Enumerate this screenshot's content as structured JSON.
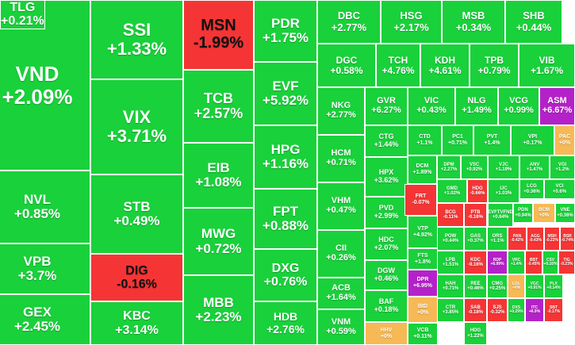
{
  "colors": {
    "up": "#19d13a",
    "down": "#f53535",
    "unchanged": "#f7b955",
    "ceiling": "#b521c9",
    "text_on_ceiling": "#ffffff"
  },
  "tiles": [
    {
      "symbol": "VND",
      "change": "+2.09%",
      "status": "up"
    },
    {
      "symbol": "NVL",
      "change": "+0.85%",
      "status": "up"
    },
    {
      "symbol": "VPB",
      "change": "+3.7%",
      "status": "up"
    },
    {
      "symbol": "GEX",
      "change": "+2.45%",
      "status": "up"
    },
    {
      "symbol": "SSI",
      "change": "+1.33%",
      "status": "up"
    },
    {
      "symbol": "VIX",
      "change": "+3.71%",
      "status": "up"
    },
    {
      "symbol": "STB",
      "change": "+0.49%",
      "status": "up"
    },
    {
      "symbol": "DIG",
      "change": "-0.16%",
      "status": "down"
    },
    {
      "symbol": "KBC",
      "change": "+3.14%",
      "status": "up"
    },
    {
      "symbol": "MSN",
      "change": "-1.99%",
      "status": "down"
    },
    {
      "symbol": "TCB",
      "change": "+2.57%",
      "status": "up"
    },
    {
      "symbol": "EIB",
      "change": "+1.08%",
      "status": "up"
    },
    {
      "symbol": "MWG",
      "change": "+0.72%",
      "status": "up"
    },
    {
      "symbol": "MBB",
      "change": "+2.23%",
      "status": "up"
    },
    {
      "symbol": "PDR",
      "change": "+1.75%",
      "status": "up"
    },
    {
      "symbol": "EVF",
      "change": "+5.92%",
      "status": "up"
    },
    {
      "symbol": "HPG",
      "change": "+1.16%",
      "status": "up"
    },
    {
      "symbol": "FPT",
      "change": "+0.88%",
      "status": "up"
    },
    {
      "symbol": "DXG",
      "change": "+0.76%",
      "status": "up"
    },
    {
      "symbol": "HDB",
      "change": "+2.76%",
      "status": "up"
    },
    {
      "symbol": "DBC",
      "change": "+2.77%",
      "status": "up"
    },
    {
      "symbol": "HSG",
      "change": "+2.17%",
      "status": "up"
    },
    {
      "symbol": "MSB",
      "change": "+0.34%",
      "status": "up"
    },
    {
      "symbol": "SHB",
      "change": "+0.44%",
      "status": "up"
    },
    {
      "symbol": "DGC",
      "change": "+0.58%",
      "status": "up"
    },
    {
      "symbol": "TCH",
      "change": "+4.76%",
      "status": "up"
    },
    {
      "symbol": "KDH",
      "change": "+4.61%",
      "status": "up"
    },
    {
      "symbol": "TPB",
      "change": "+0.79%",
      "status": "up"
    },
    {
      "symbol": "VIB",
      "change": "+1.67%",
      "status": "up"
    },
    {
      "symbol": "NKG",
      "change": "+2.77%",
      "status": "up"
    },
    {
      "symbol": "GVR",
      "change": "+6.27%",
      "status": "up"
    },
    {
      "symbol": "VIC",
      "change": "+0.43%",
      "status": "up"
    },
    {
      "symbol": "NLG",
      "change": "+1.49%",
      "status": "up"
    },
    {
      "symbol": "VCG",
      "change": "+0.99%",
      "status": "up"
    },
    {
      "symbol": "ASM",
      "change": "+6.67%",
      "status": "ceiling"
    },
    {
      "symbol": "HCM",
      "change": "+0.71%",
      "status": "up"
    },
    {
      "symbol": "VHM",
      "change": "+0.47%",
      "status": "up"
    },
    {
      "symbol": "CII",
      "change": "+0.26%",
      "status": "up"
    },
    {
      "symbol": "ACB",
      "change": "+1.64%",
      "status": "up"
    },
    {
      "symbol": "VNM",
      "change": "+0.59%",
      "status": "up"
    },
    {
      "symbol": "CTG",
      "change": "+1.44%",
      "status": "up"
    },
    {
      "symbol": "HPX",
      "change": "+3.62%",
      "status": "up"
    },
    {
      "symbol": "PVD",
      "change": "+2.99%",
      "status": "up"
    },
    {
      "symbol": "HDC",
      "change": "+2.07%",
      "status": "up"
    },
    {
      "symbol": "DGW",
      "change": "+0.46%",
      "status": "up"
    },
    {
      "symbol": "BAF",
      "change": "+0.18%",
      "status": "up"
    },
    {
      "symbol": "HHV",
      "change": "+0%",
      "status": "unchanged"
    },
    {
      "symbol": "CTD",
      "change": "+1.1%",
      "status": "up"
    },
    {
      "symbol": "PC1",
      "change": "+0.71%",
      "status": "up"
    },
    {
      "symbol": "PVT",
      "change": "+1.4%",
      "status": "up"
    },
    {
      "symbol": "VPI",
      "change": "+0.17%",
      "status": "up"
    },
    {
      "symbol": "PAC",
      "change": "+0%",
      "status": "unchanged"
    },
    {
      "symbol": "DCM",
      "change": "+1.89%",
      "status": "up"
    },
    {
      "symbol": "FRT",
      "change": "-0.07%",
      "status": "down"
    },
    {
      "symbol": "VTP",
      "change": "+4.92%",
      "status": "up"
    },
    {
      "symbol": "FTS",
      "change": "+1.8%",
      "status": "up"
    },
    {
      "symbol": "DPR",
      "change": "+6.95%",
      "status": "ceiling"
    },
    {
      "symbol": "BID",
      "change": "+0%",
      "status": "unchanged"
    },
    {
      "symbol": "VCB",
      "change": "+0.11%",
      "status": "up"
    },
    {
      "symbol": "DPM",
      "change": "+2.27%",
      "status": "up"
    },
    {
      "symbol": "VSC",
      "change": "+0.92%",
      "status": "up"
    },
    {
      "symbol": "VJC",
      "change": "+1.19%",
      "status": "up"
    },
    {
      "symbol": "GMD",
      "change": "+1.02%",
      "status": "up"
    },
    {
      "symbol": "HDG",
      "change": "-0.66%",
      "status": "down"
    },
    {
      "symbol": "BCG",
      "change": "-0.11%",
      "status": "down"
    },
    {
      "symbol": "PTB",
      "change": "-0.16%",
      "status": "down"
    },
    {
      "symbol": "GAS",
      "change": "+0.37%",
      "status": "up"
    },
    {
      "symbol": "POW",
      "change": "+0.44%",
      "status": "up"
    },
    {
      "symbol": "LPB",
      "change": "+1.51%",
      "status": "up"
    },
    {
      "symbol": "KDC",
      "change": "-0.16%",
      "status": "down"
    },
    {
      "symbol": "HAH",
      "change": "+0.71%",
      "status": "up"
    },
    {
      "symbol": "CTR",
      "change": "+3.85%",
      "status": "up"
    },
    {
      "symbol": "REE",
      "change": "+0.46%",
      "status": "up"
    },
    {
      "symbol": "SAB",
      "change": "-0.18%",
      "status": "down"
    },
    {
      "symbol": "HDG",
      "change": "+1.22%",
      "status": "up"
    },
    {
      "symbol": "CMG",
      "change": "+0.25%",
      "status": "up"
    },
    {
      "symbol": "SJS",
      "change": "-0.32%",
      "status": "down"
    },
    {
      "symbol": "LGL",
      "change": "+0%",
      "status": "unchanged"
    },
    {
      "symbol": "VGC",
      "change": "+0.91%",
      "status": "up"
    },
    {
      "symbol": "PLX",
      "change": "+0.14%",
      "status": "up"
    },
    {
      "symbol": "VCI",
      "change": "+0.6%",
      "status": "up"
    },
    {
      "symbol": "ANV",
      "change": "+1.47%",
      "status": "up"
    },
    {
      "symbol": "VGI",
      "change": "+1.2%",
      "status": "up"
    },
    {
      "symbol": "LCG",
      "change": "+0.36%",
      "status": "up"
    },
    {
      "symbol": "IJC",
      "change": "+1.03%",
      "status": "up"
    },
    {
      "symbol": "EVFTVFND",
      "change": "+0.64%",
      "status": "up"
    },
    {
      "symbol": "PDN",
      "change": "+0.94%",
      "status": "up"
    },
    {
      "symbol": "BCM",
      "change": "+0%",
      "status": "unchanged"
    },
    {
      "symbol": "VNE",
      "change": "+0.36%",
      "status": "up"
    },
    {
      "symbol": "ORS",
      "change": "+1.1%",
      "status": "up"
    },
    {
      "symbol": "PAN",
      "change": "-0.42%",
      "status": "down"
    },
    {
      "symbol": "AGG",
      "change": "-0.43%",
      "status": "down"
    },
    {
      "symbol": "MSH",
      "change": "-0.22%",
      "status": "down"
    },
    {
      "symbol": "BSR",
      "change": "-0.74%",
      "status": "down"
    },
    {
      "symbol": "RDP",
      "change": "+6.99%",
      "status": "ceiling"
    },
    {
      "symbol": "VRC",
      "change": "+1.4%",
      "status": "up"
    },
    {
      "symbol": "BBT",
      "change": "-0.45%",
      "status": "down"
    },
    {
      "symbol": "CSV",
      "change": "+0.16%",
      "status": "up"
    },
    {
      "symbol": "TIG",
      "change": "-0.23%",
      "status": "down"
    },
    {
      "symbol": "DXS",
      "change": "+0.29%",
      "status": "up"
    },
    {
      "symbol": "ITC",
      "change": "+6.9%",
      "status": "ceiling"
    },
    {
      "symbol": "SBT",
      "change": "-0.17%",
      "status": "down"
    },
    {
      "symbol": "TLG",
      "change": "+0.21%",
      "status": "up"
    }
  ]
}
